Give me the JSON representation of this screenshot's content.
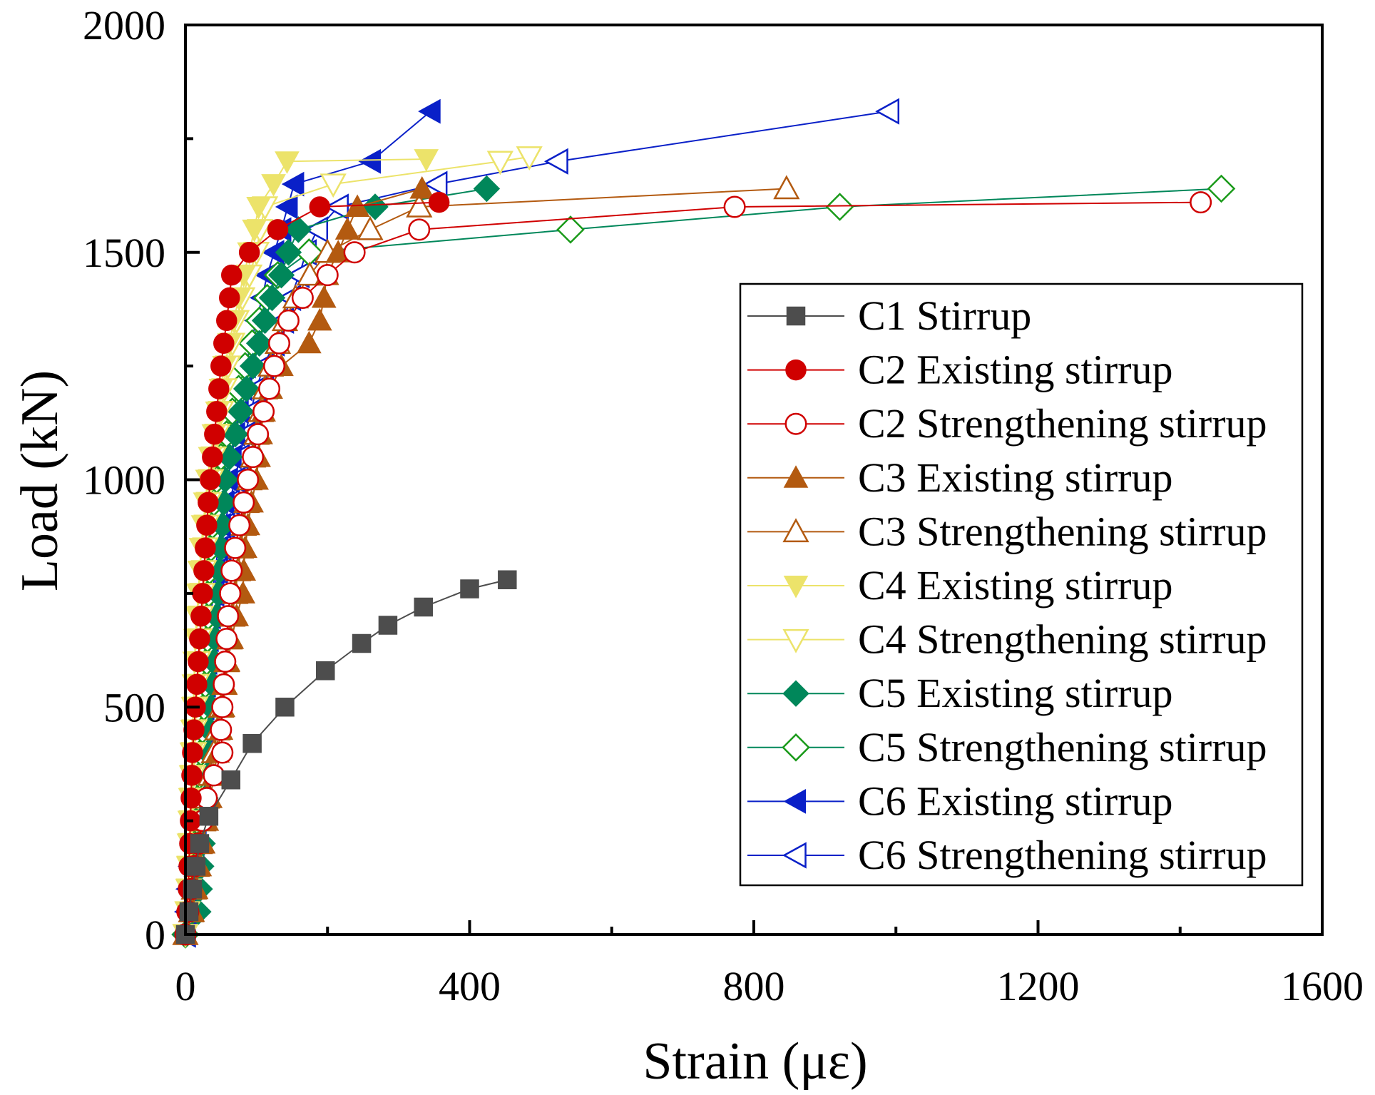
{
  "chart_data": {
    "type": "line",
    "title": "",
    "xlabel": "Strain (με)",
    "ylabel": "Load (kN)",
    "xlim": [
      0,
      1600
    ],
    "ylim": [
      0,
      2000
    ],
    "xticks": [
      0,
      400,
      800,
      1200,
      1600
    ],
    "xtick_labels": [
      "0",
      "400",
      "800",
      "1200",
      "1600"
    ],
    "yticks": [
      0,
      500,
      1000,
      1500,
      2000
    ],
    "ytick_labels": [
      "0",
      "500",
      "1000",
      "1500",
      "2000"
    ],
    "grid": false,
    "legend_position": "right-middle",
    "series": [
      {
        "name": "C1 Stirrup",
        "color": "#4d4d4d",
        "marker": "square",
        "filled": true,
        "x": [
          0,
          5,
          10,
          15,
          20,
          33,
          64,
          94,
          140,
          197,
          248,
          285,
          335,
          400,
          453
        ],
        "y": [
          0,
          50,
          100,
          150,
          200,
          260,
          340,
          420,
          500,
          580,
          640,
          680,
          720,
          760,
          780
        ]
      },
      {
        "name": "C2 Existing stirrup",
        "color": "#d00000",
        "marker": "circle",
        "filled": true,
        "x": [
          0,
          2,
          4,
          5,
          6,
          7,
          8,
          9,
          10,
          12,
          14,
          16,
          18,
          20,
          22,
          24,
          26,
          28,
          30,
          32,
          35,
          38,
          41,
          44,
          47,
          50,
          54,
          58,
          62,
          65,
          90,
          130,
          189,
          357
        ],
        "y": [
          0,
          50,
          100,
          150,
          200,
          250,
          300,
          350,
          400,
          450,
          500,
          550,
          600,
          650,
          700,
          750,
          800,
          850,
          900,
          950,
          1000,
          1050,
          1100,
          1150,
          1200,
          1250,
          1300,
          1350,
          1400,
          1450,
          1500,
          1550,
          1600,
          1610
        ]
      },
      {
        "name": "C2 Strengthening stirrup",
        "color": "#d00000",
        "marker": "circle",
        "filled": false,
        "x": [
          0,
          4,
          8,
          12,
          18,
          24,
          30,
          40,
          52,
          50,
          52,
          54,
          56,
          58,
          60,
          63,
          65,
          70,
          76,
          82,
          88,
          95,
          102,
          110,
          118,
          125,
          132,
          145,
          165,
          200,
          238,
          329,
          773,
          1429
        ],
        "y": [
          0,
          50,
          100,
          150,
          200,
          250,
          300,
          350,
          400,
          450,
          500,
          550,
          600,
          650,
          700,
          750,
          800,
          850,
          900,
          950,
          1000,
          1050,
          1100,
          1150,
          1200,
          1250,
          1300,
          1350,
          1400,
          1450,
          1500,
          1550,
          1600,
          1610
        ]
      },
      {
        "name": "C3 Existing stirrup",
        "color": "#b35a10",
        "marker": "triangle-up",
        "filled": true,
        "x": [
          0,
          10,
          15,
          20,
          25,
          30,
          35,
          40,
          45,
          50,
          53,
          56,
          60,
          65,
          72,
          81,
          82,
          84,
          88,
          93,
          100,
          103,
          106,
          110,
          120,
          135,
          174,
          189,
          195,
          199,
          215,
          228,
          242,
          333
        ],
        "y": [
          0,
          50,
          100,
          150,
          200,
          250,
          300,
          350,
          400,
          450,
          500,
          550,
          600,
          650,
          700,
          750,
          800,
          850,
          900,
          950,
          1000,
          1050,
          1100,
          1150,
          1200,
          1250,
          1300,
          1350,
          1400,
          1450,
          1500,
          1550,
          1600,
          1640
        ]
      },
      {
        "name": "C3 Strengthening stirrup",
        "color": "#b35a10",
        "marker": "triangle-up",
        "filled": false,
        "x": [
          0,
          8,
          12,
          16,
          20,
          25,
          30,
          35,
          40,
          45,
          50,
          55,
          58,
          62,
          66,
          70,
          74,
          78,
          82,
          86,
          90,
          95,
          100,
          106,
          112,
          120,
          130,
          140,
          155,
          175,
          200,
          260,
          329,
          846
        ],
        "y": [
          0,
          50,
          100,
          150,
          200,
          250,
          300,
          350,
          400,
          450,
          500,
          550,
          600,
          650,
          700,
          750,
          800,
          850,
          900,
          950,
          1000,
          1050,
          1100,
          1150,
          1200,
          1250,
          1300,
          1350,
          1400,
          1450,
          1500,
          1550,
          1600,
          1640
        ]
      },
      {
        "name": "C4 Existing stirrup",
        "color": "#ece36a",
        "marker": "triangle-down",
        "filled": true,
        "x": [
          0,
          2,
          3,
          4,
          5,
          6,
          7,
          8,
          9,
          10,
          11,
          12,
          13,
          14,
          16,
          18,
          20,
          22,
          25,
          28,
          31,
          35,
          40,
          45,
          50,
          55,
          62,
          68,
          75,
          82,
          90,
          97,
          103,
          124,
          143,
          339
        ],
        "y": [
          0,
          50,
          100,
          150,
          200,
          250,
          300,
          350,
          400,
          450,
          500,
          550,
          600,
          650,
          700,
          750,
          800,
          850,
          900,
          950,
          1000,
          1050,
          1100,
          1150,
          1200,
          1250,
          1300,
          1350,
          1400,
          1450,
          1500,
          1550,
          1600,
          1650,
          1700,
          1705
        ]
      },
      {
        "name": "C4 Strengthening stirrup",
        "color": "#ece36a",
        "marker": "triangle-down",
        "filled": false,
        "x": [
          0,
          3,
          5,
          6,
          8,
          9,
          10,
          11,
          12,
          13,
          14,
          16,
          18,
          20,
          22,
          24,
          26,
          28,
          30,
          33,
          36,
          40,
          45,
          50,
          55,
          60,
          66,
          72,
          80,
          90,
          100,
          105,
          112,
          208,
          443,
          484
        ],
        "y": [
          0,
          50,
          100,
          150,
          200,
          250,
          300,
          350,
          400,
          450,
          500,
          550,
          600,
          650,
          700,
          750,
          800,
          850,
          900,
          950,
          1000,
          1050,
          1100,
          1150,
          1200,
          1250,
          1300,
          1350,
          1400,
          1450,
          1500,
          1550,
          1600,
          1650,
          1700,
          1710
        ]
      },
      {
        "name": "C5 Existing stirrup",
        "color": "#00875a",
        "marker": "diamond",
        "filled": true,
        "x": [
          0,
          18,
          20,
          22,
          24,
          26,
          28,
          30,
          32,
          34,
          36,
          38,
          40,
          42,
          44,
          46,
          48,
          50,
          52,
          54,
          56,
          62,
          70,
          78,
          86,
          95,
          104,
          112,
          122,
          135,
          145,
          159,
          267,
          424
        ],
        "y": [
          0,
          50,
          100,
          150,
          200,
          250,
          300,
          350,
          400,
          450,
          500,
          550,
          600,
          650,
          700,
          750,
          800,
          850,
          900,
          950,
          1000,
          1050,
          1100,
          1150,
          1200,
          1250,
          1300,
          1350,
          1400,
          1450,
          1500,
          1550,
          1600,
          1640
        ]
      },
      {
        "name": "C5 Strengthening stirrup",
        "color": "#1a9a1a",
        "line_color": "#00875a",
        "marker": "diamond",
        "filled": false,
        "x": [
          0,
          8,
          10,
          12,
          14,
          16,
          18,
          20,
          22,
          24,
          26,
          28,
          30,
          31,
          32,
          33,
          34,
          36,
          38,
          40,
          44,
          50,
          58,
          66,
          75,
          84,
          94,
          104,
          115,
          130,
          174,
          542,
          921,
          1458
        ],
        "y": [
          0,
          50,
          100,
          150,
          200,
          250,
          300,
          350,
          400,
          450,
          500,
          550,
          600,
          650,
          700,
          750,
          800,
          850,
          900,
          950,
          1000,
          1050,
          1100,
          1150,
          1200,
          1250,
          1300,
          1350,
          1400,
          1450,
          1500,
          1550,
          1600,
          1640
        ]
      },
      {
        "name": "C6 Existing stirrup",
        "color": "#0a20c8",
        "marker": "triangle-left",
        "filled": true,
        "x": [
          0,
          5,
          8,
          10,
          12,
          14,
          16,
          18,
          20,
          22,
          24,
          26,
          28,
          30,
          34,
          38,
          42,
          46,
          50,
          55,
          60,
          65,
          70,
          75,
          80,
          85,
          92,
          100,
          108,
          115,
          125,
          135,
          144,
          153,
          261,
          345
        ],
        "y": [
          0,
          50,
          100,
          150,
          200,
          250,
          300,
          350,
          400,
          450,
          500,
          550,
          600,
          650,
          700,
          750,
          800,
          850,
          900,
          950,
          1000,
          1050,
          1100,
          1150,
          1200,
          1250,
          1300,
          1350,
          1400,
          1450,
          1500,
          1550,
          1600,
          1650,
          1700,
          1810
        ]
      },
      {
        "name": "C6 Strengthening stirrup",
        "color": "#0a20c8",
        "marker": "triangle-left",
        "filled": false,
        "x": [
          0,
          3,
          5,
          8,
          12,
          15,
          18,
          20,
          22,
          24,
          26,
          28,
          30,
          32,
          35,
          40,
          45,
          50,
          55,
          62,
          70,
          76,
          84,
          92,
          100,
          110,
          125,
          138,
          148,
          160,
          170,
          186,
          215,
          354,
          524,
          990
        ],
        "y": [
          0,
          50,
          100,
          150,
          200,
          250,
          300,
          350,
          400,
          450,
          500,
          550,
          600,
          650,
          700,
          750,
          800,
          850,
          900,
          950,
          1000,
          1050,
          1100,
          1150,
          1200,
          1250,
          1300,
          1350,
          1400,
          1450,
          1500,
          1550,
          1600,
          1650,
          1700,
          1810
        ]
      }
    ]
  }
}
